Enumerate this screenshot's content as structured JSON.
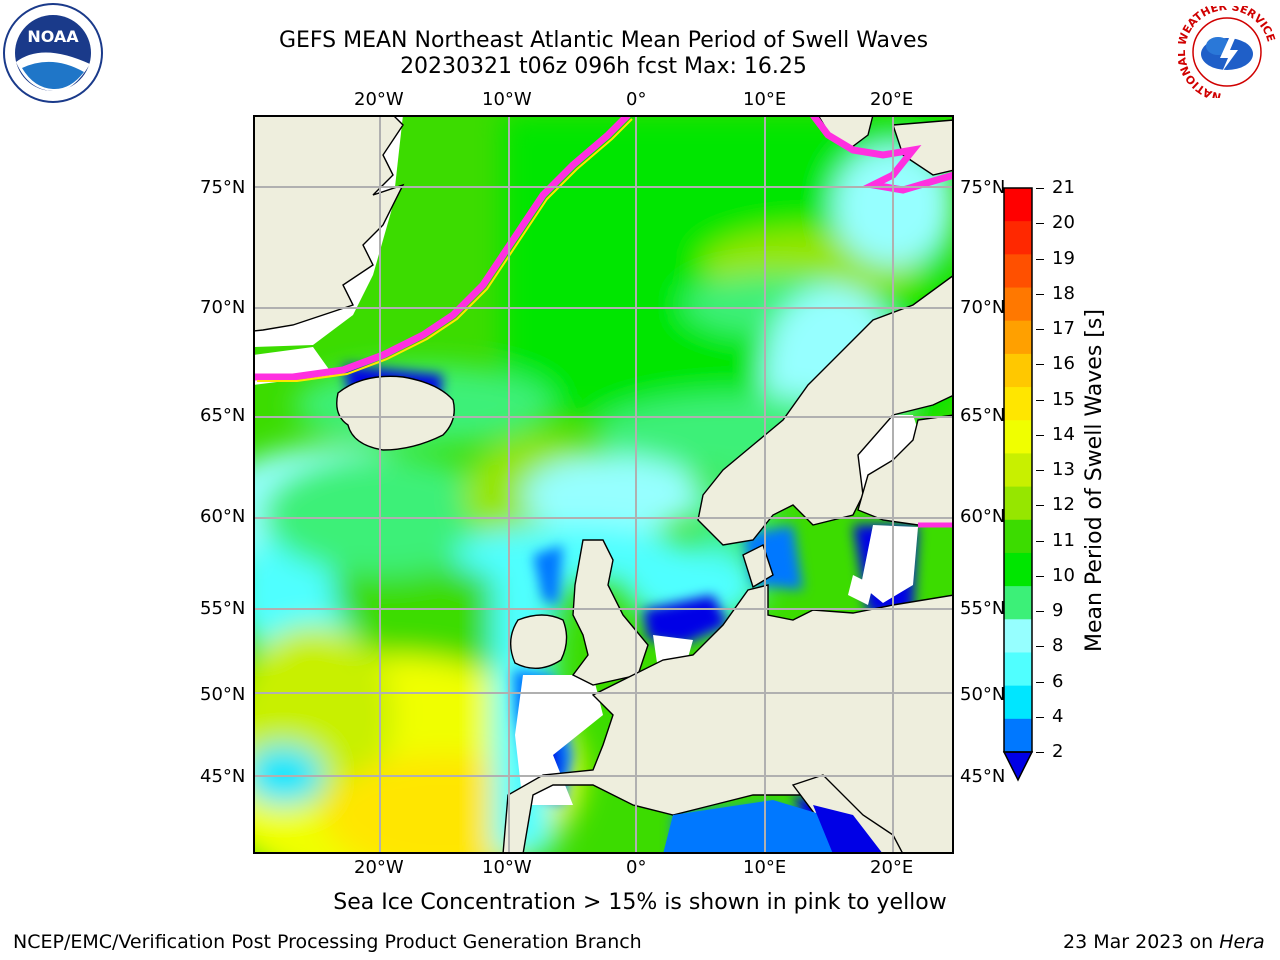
{
  "title_line1": "GEFS MEAN Northeast Atlantic Mean Period of Swell Waves",
  "title_line2": "20230321 t06z 096h fcst   Max: 16.25",
  "lon_labels": [
    "20°W",
    "10°W",
    "0°",
    "10°E",
    "20°E"
  ],
  "lat_labels": [
    "75°N",
    "70°N",
    "65°N",
    "60°N",
    "55°N",
    "50°N",
    "45°N"
  ],
  "colorbar": {
    "label": "Mean Period of Swell Waves [s]",
    "ticks": [
      "21",
      "20",
      "19",
      "18",
      "17",
      "16",
      "15",
      "14",
      "13",
      "12",
      "11",
      "10",
      "9",
      "8",
      "6",
      "4",
      "2"
    ],
    "colors": [
      "#ff0000",
      "#ff2800",
      "#ff5000",
      "#ff7800",
      "#ffa000",
      "#ffc800",
      "#ffe600",
      "#f0ff00",
      "#c8f000",
      "#96e600",
      "#3cdc00",
      "#00e600",
      "#3cf078",
      "#96ffff",
      "#50ffff",
      "#00e6ff",
      "#0078ff"
    ],
    "extend_color": "#0000e6"
  },
  "notice": "Sea Ice Concentration > 15% is shown in pink to yellow",
  "footer_left": "NCEP/EMC/Verification Post Processing Product Generation Branch",
  "footer_right_date": "23 Mar 2023 on ",
  "footer_right_host": "Hera",
  "logos": {
    "left": "NOAA",
    "right_ring": "NATIONAL WEATHER SERVICE"
  }
}
